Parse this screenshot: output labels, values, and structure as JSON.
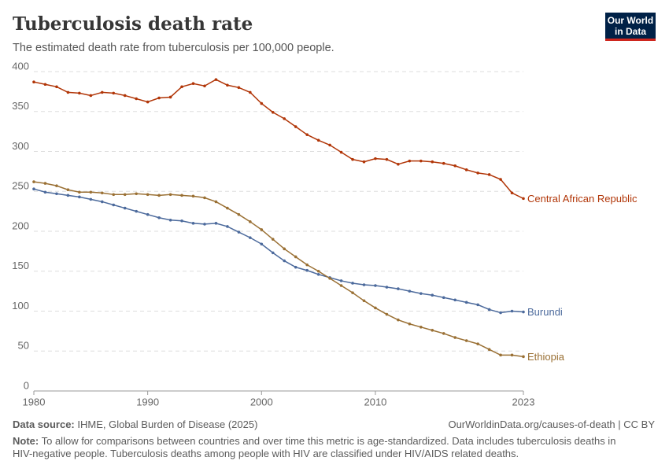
{
  "header": {
    "logo_line1": "Our World",
    "logo_line2": "in Data"
  },
  "chart_data": {
    "type": "line",
    "title": "Tuberculosis death rate",
    "subtitle": "The estimated death rate from tuberculosis per 100,000 people.",
    "x": [
      1980,
      1981,
      1982,
      1983,
      1984,
      1985,
      1986,
      1987,
      1988,
      1989,
      1990,
      1991,
      1992,
      1993,
      1994,
      1995,
      1996,
      1997,
      1998,
      1999,
      2000,
      2001,
      2002,
      2003,
      2004,
      2005,
      2006,
      2007,
      2008,
      2009,
      2010,
      2011,
      2012,
      2013,
      2014,
      2015,
      2016,
      2017,
      2018,
      2019,
      2020,
      2021,
      2022,
      2023
    ],
    "series": [
      {
        "name": "Central African Republic",
        "color": "#b13507",
        "values": [
          387,
          384,
          381,
          374,
          373,
          370,
          374,
          373,
          370,
          366,
          362,
          367,
          368,
          381,
          385,
          382,
          390,
          383,
          380,
          374,
          360,
          349,
          341,
          331,
          321,
          314,
          308,
          299,
          290,
          287,
          291,
          290,
          284,
          288,
          288,
          287,
          285,
          282,
          277,
          273,
          271,
          265,
          248,
          241
        ]
      },
      {
        "name": "Burundi",
        "color": "#4c6a9c",
        "values": [
          253,
          249,
          247,
          245,
          243,
          240,
          237,
          233,
          229,
          225,
          221,
          217,
          214,
          213,
          210,
          209,
          210,
          206,
          199,
          192,
          184,
          173,
          163,
          155,
          151,
          146,
          142,
          138,
          135,
          133,
          132,
          130,
          128,
          125,
          122,
          120,
          117,
          114,
          111,
          108,
          102,
          98,
          100,
          99
        ]
      },
      {
        "name": "Ethiopia",
        "color": "#9a7034",
        "values": [
          262,
          260,
          257,
          252,
          249,
          249,
          248,
          246,
          246,
          247,
          246,
          245,
          246,
          245,
          244,
          242,
          237,
          229,
          221,
          212,
          202,
          190,
          178,
          168,
          158,
          150,
          141,
          132,
          123,
          113,
          104,
          96,
          89,
          84,
          80,
          76,
          72,
          67,
          63,
          59,
          52,
          45,
          45,
          43
        ]
      }
    ],
    "xlim": [
      1980,
      2023
    ],
    "xticks": [
      1980,
      1990,
      2000,
      2010,
      2023
    ],
    "ylim": [
      0,
      400
    ],
    "yticks": [
      0,
      50,
      100,
      150,
      200,
      250,
      300,
      350,
      400
    ],
    "grid": true
  },
  "footer": {
    "source_label": "Data source:",
    "source": "IHME, Global Burden of Disease (2025)",
    "url": "OurWorldinData.org/causes-of-death | CC BY",
    "note_label": "Note:",
    "note": "To allow for comparisons between countries and over time this metric is age-standardized. Data includes tuberculosis deaths in HIV-negative people. Tuberculosis deaths among people with HIV are classified under HIV/AIDS related deaths."
  }
}
